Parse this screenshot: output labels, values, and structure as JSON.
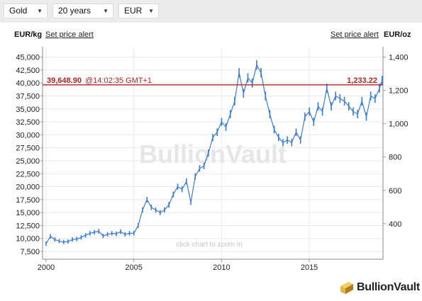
{
  "controls": {
    "metal": "Gold",
    "period": "20 years",
    "currency": "EUR"
  },
  "header": {
    "unit_left": "EUR/kg",
    "unit_right": "EUR/oz",
    "alert_left": "Set price alert",
    "alert_right": "Set price alert"
  },
  "price_line": {
    "left_price": "39,648.90",
    "left_time": "@14:02:35 GMT+1",
    "right_price": "1,233.22",
    "color": "#b22222"
  },
  "watermark": "BullionVault",
  "zoom_hint": "click chart to zoom in",
  "brand": "BullionVault",
  "chart_data": {
    "type": "line",
    "title": "",
    "xlabel": "",
    "ylabel": "",
    "series_color": "#3a7bd5",
    "x_ticks": [
      "2000",
      "2005",
      "2010",
      "2015"
    ],
    "x_tick_values": [
      2000,
      2005,
      2010,
      2015
    ],
    "xlim": [
      1999.8,
      2019.2
    ],
    "y_left": {
      "unit": "EUR/kg",
      "ylim": [
        6000,
        47000
      ],
      "ticks": [
        7500,
        10000,
        12500,
        15000,
        17500,
        20000,
        22500,
        25000,
        27500,
        30000,
        32500,
        35000,
        37500,
        40000,
        42500,
        45000
      ],
      "tick_labels": [
        "7,500",
        "10,000",
        "12,500",
        "15,000",
        "17,500",
        "20,000",
        "22,500",
        "25,000",
        "27,500",
        "30,000",
        "32,500",
        "35,000",
        "37,500",
        "40,000",
        "42,500",
        "45,000"
      ]
    },
    "y_right": {
      "unit": "EUR/oz",
      "ticks": [
        400,
        600,
        800,
        1000,
        1200,
        1400
      ],
      "tick_labels": [
        "400",
        "600",
        "800",
        "1,000",
        "1,200",
        "1,400"
      ]
    },
    "current_value_eur_kg": 39648.9,
    "current_value_eur_oz": 1233.22,
    "grid": true,
    "x": [
      2000.0,
      2000.25,
      2000.5,
      2000.75,
      2001.0,
      2001.25,
      2001.5,
      2001.75,
      2002.0,
      2002.25,
      2002.5,
      2002.75,
      2003.0,
      2003.25,
      2003.5,
      2003.75,
      2004.0,
      2004.25,
      2004.5,
      2004.75,
      2005.0,
      2005.25,
      2005.5,
      2005.75,
      2006.0,
      2006.25,
      2006.5,
      2006.75,
      2007.0,
      2007.25,
      2007.5,
      2007.75,
      2008.0,
      2008.25,
      2008.5,
      2008.75,
      2009.0,
      2009.25,
      2009.5,
      2009.75,
      2010.0,
      2010.25,
      2010.5,
      2010.75,
      2011.0,
      2011.25,
      2011.5,
      2011.75,
      2012.0,
      2012.25,
      2012.5,
      2012.75,
      2013.0,
      2013.25,
      2013.5,
      2013.75,
      2014.0,
      2014.25,
      2014.5,
      2014.75,
      2015.0,
      2015.25,
      2015.5,
      2015.75,
      2016.0,
      2016.25,
      2016.5,
      2016.75,
      2017.0,
      2017.25,
      2017.5,
      2017.75,
      2018.0,
      2018.25,
      2018.5,
      2018.75,
      2019.0,
      2019.15
    ],
    "y": [
      9000,
      10400,
      9800,
      9500,
      9300,
      9400,
      9800,
      9900,
      10200,
      10600,
      11000,
      11200,
      11400,
      10500,
      10800,
      11000,
      10900,
      11300,
      10800,
      11000,
      11000,
      12500,
      15500,
      17500,
      16000,
      15500,
      15000,
      15500,
      16500,
      18500,
      20000,
      19500,
      21000,
      17000,
      22000,
      23500,
      24000,
      26500,
      29500,
      30500,
      32500,
      31500,
      34000,
      36500,
      42000,
      38000,
      41000,
      40000,
      43500,
      42000,
      37500,
      34000,
      31000,
      29500,
      28500,
      29000,
      28500,
      30500,
      29000,
      33500,
      34500,
      32500,
      35500,
      34500,
      39000,
      35500,
      37500,
      37000,
      36500,
      35500,
      34500,
      34000,
      36500,
      33500,
      37500,
      37000,
      39000,
      40500
    ]
  }
}
